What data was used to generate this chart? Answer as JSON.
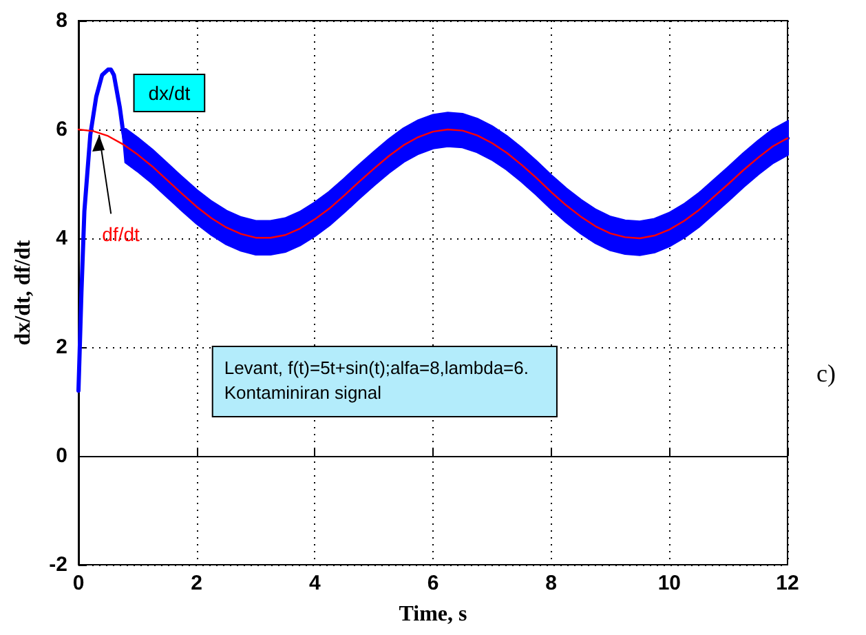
{
  "chart_data": {
    "type": "line",
    "xlabel": "Time, s",
    "ylabel": "dx/dt, df/dt",
    "xlim": [
      0,
      12
    ],
    "xticks": [
      0,
      2,
      4,
      6,
      8,
      10,
      12
    ],
    "ylim": [
      -2,
      8
    ],
    "yticks": [
      -2,
      0,
      2,
      4,
      6,
      8
    ],
    "grid": true,
    "series": [
      {
        "name": "dx/dt",
        "color": "#0000ff",
        "x": [
          0,
          0.05,
          0.1,
          0.2,
          0.3,
          0.4,
          0.5,
          0.55,
          0.6,
          0.7,
          0.75,
          0.8,
          1,
          1.25,
          1.5,
          1.75,
          2,
          2.25,
          2.5,
          2.75,
          3,
          3.25,
          3.5,
          3.75,
          4,
          4.25,
          4.5,
          4.75,
          5,
          5.25,
          5.5,
          5.75,
          6,
          6.25,
          6.5,
          6.75,
          7,
          7.25,
          7.5,
          7.75,
          8,
          8.25,
          8.5,
          8.75,
          9,
          9.25,
          9.5,
          9.75,
          10,
          10.25,
          10.5,
          10.75,
          11,
          11.25,
          11.5,
          11.75,
          12
        ],
        "values": [
          1.2,
          3.0,
          4.5,
          5.9,
          6.6,
          7.0,
          7.1,
          7.1,
          7.0,
          6.4,
          6.0,
          5.7,
          5.54,
          5.32,
          5.07,
          4.82,
          4.58,
          4.37,
          4.2,
          4.08,
          4.01,
          4.01,
          4.06,
          4.18,
          4.35,
          4.55,
          4.79,
          5.04,
          5.28,
          5.51,
          5.71,
          5.86,
          5.96,
          6.0,
          5.98,
          5.89,
          5.75,
          5.57,
          5.35,
          5.11,
          4.85,
          4.61,
          4.4,
          4.22,
          4.09,
          4.02,
          4.0,
          4.05,
          4.16,
          4.32,
          4.52,
          4.76,
          5.0,
          5.25,
          5.48,
          5.69,
          5.84
        ],
        "lower": [
          1.2,
          3.0,
          4.5,
          5.9,
          6.6,
          7.0,
          7.1,
          7.1,
          7.0,
          6.4,
          6.0,
          5.4,
          5.24,
          5.02,
          4.77,
          4.52,
          4.28,
          4.07,
          3.9,
          3.78,
          3.71,
          3.71,
          3.76,
          3.88,
          4.05,
          4.25,
          4.49,
          4.74,
          4.98,
          5.21,
          5.41,
          5.56,
          5.66,
          5.7,
          5.68,
          5.59,
          5.45,
          5.27,
          5.05,
          4.81,
          4.55,
          4.31,
          4.1,
          3.92,
          3.79,
          3.72,
          3.7,
          3.75,
          3.86,
          4.02,
          4.22,
          4.46,
          4.7,
          4.95,
          5.18,
          5.39,
          5.54
        ],
        "upper": [
          1.2,
          3.0,
          4.5,
          5.9,
          6.6,
          7.0,
          7.1,
          7.1,
          7.0,
          6.4,
          6.0,
          6.0,
          5.84,
          5.62,
          5.37,
          5.12,
          4.88,
          4.67,
          4.5,
          4.38,
          4.31,
          4.31,
          4.36,
          4.48,
          4.65,
          4.85,
          5.09,
          5.34,
          5.58,
          5.81,
          6.01,
          6.16,
          6.26,
          6.3,
          6.28,
          6.19,
          6.05,
          5.87,
          5.65,
          5.41,
          5.15,
          4.91,
          4.7,
          4.52,
          4.39,
          4.32,
          4.3,
          4.35,
          4.46,
          4.62,
          4.82,
          5.06,
          5.3,
          5.55,
          5.78,
          5.99,
          6.14
        ]
      },
      {
        "name": "df/dt",
        "color": "#ff0000",
        "x": [
          0,
          0.25,
          0.5,
          0.75,
          1,
          1.25,
          1.5,
          1.75,
          2,
          2.25,
          2.5,
          2.75,
          3,
          3.25,
          3.5,
          3.75,
          4,
          4.25,
          4.5,
          4.75,
          5,
          5.25,
          5.5,
          5.75,
          6,
          6.25,
          6.5,
          6.75,
          7,
          7.25,
          7.5,
          7.75,
          8,
          8.25,
          8.5,
          8.75,
          9,
          9.25,
          9.5,
          9.75,
          10,
          10.25,
          10.5,
          10.75,
          11,
          11.25,
          11.5,
          11.75,
          12
        ],
        "values": [
          6.0,
          5.97,
          5.88,
          5.73,
          5.54,
          5.32,
          5.07,
          4.82,
          4.58,
          4.37,
          4.2,
          4.08,
          4.01,
          4.01,
          4.06,
          4.18,
          4.35,
          4.55,
          4.79,
          5.04,
          5.28,
          5.51,
          5.71,
          5.86,
          5.96,
          6.0,
          5.98,
          5.89,
          5.75,
          5.57,
          5.35,
          5.11,
          4.85,
          4.61,
          4.4,
          4.22,
          4.09,
          4.02,
          4.0,
          4.05,
          4.16,
          4.32,
          4.52,
          4.76,
          5.0,
          5.25,
          5.48,
          5.69,
          5.84
        ]
      }
    ],
    "annotations": [
      "Levant, f(t)=5t+sin(t);alfa=8,lambda=6.\nKontaminiran signal",
      "c)"
    ]
  }
}
